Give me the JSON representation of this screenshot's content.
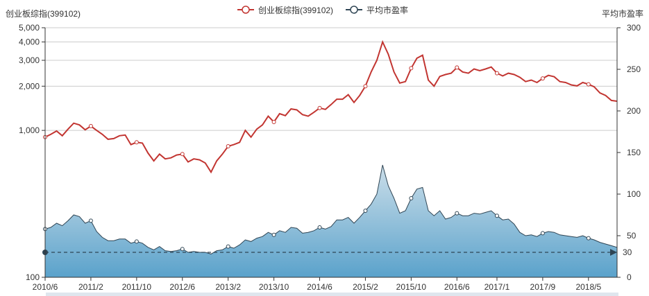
{
  "chart_data": {
    "type": "line",
    "left_axis": {
      "title": "创业板综指(399102)",
      "scale": "log",
      "ticks": [
        100,
        1000,
        2000,
        3000,
        4000,
        5000
      ],
      "tick_labels": [
        "100",
        "1,000",
        "2,000",
        "3,000",
        "4,000",
        "5,000"
      ],
      "range": [
        100,
        5000
      ]
    },
    "right_axis": {
      "title": "平均市盈率",
      "scale": "linear",
      "ticks": [
        0,
        50,
        100,
        150,
        200,
        250,
        300
      ],
      "tick_labels": [
        "0",
        "50",
        "100",
        "150",
        "200",
        "250",
        "300"
      ],
      "range": [
        0,
        300
      ]
    },
    "x_tick_labels": [
      "2010/6",
      "2011/2",
      "2011/10",
      "2012/6",
      "2013/2",
      "2013/10",
      "2014/6",
      "2015/2",
      "2015/10",
      "2016/6",
      "2017/1",
      "2017/9",
      "2018/5"
    ],
    "x_tick_index": [
      0,
      8,
      16,
      24,
      32,
      40,
      48,
      56,
      64,
      72,
      79,
      87,
      95
    ],
    "x": [
      "2010/6",
      "2010/7",
      "2010/8",
      "2010/9",
      "2010/10",
      "2010/11",
      "2010/12",
      "2011/1",
      "2011/2",
      "2011/3",
      "2011/4",
      "2011/5",
      "2011/6",
      "2011/7",
      "2011/8",
      "2011/9",
      "2011/10",
      "2011/11",
      "2011/12",
      "2012/1",
      "2012/2",
      "2012/3",
      "2012/4",
      "2012/5",
      "2012/6",
      "2012/7",
      "2012/8",
      "2012/9",
      "2012/10",
      "2012/11",
      "2012/12",
      "2013/1",
      "2013/2",
      "2013/3",
      "2013/4",
      "2013/5",
      "2013/6",
      "2013/7",
      "2013/8",
      "2013/9",
      "2013/10",
      "2013/11",
      "2013/12",
      "2014/1",
      "2014/2",
      "2014/3",
      "2014/4",
      "2014/5",
      "2014/6",
      "2014/7",
      "2014/8",
      "2014/9",
      "2014/10",
      "2014/11",
      "2014/12",
      "2015/1",
      "2015/2",
      "2015/3",
      "2015/4",
      "2015/5",
      "2015/6",
      "2015/7",
      "2015/8",
      "2015/9",
      "2015/10",
      "2015/11",
      "2015/12",
      "2016/1",
      "2016/2",
      "2016/3",
      "2016/4",
      "2016/5",
      "2016/6",
      "2016/7",
      "2016/8",
      "2016/9",
      "2016/10",
      "2016/11",
      "2016/12",
      "2017/1",
      "2017/2",
      "2017/3",
      "2017/4",
      "2017/5",
      "2017/6",
      "2017/7",
      "2017/8",
      "2017/9",
      "2017/10",
      "2017/11",
      "2017/12",
      "2018/1",
      "2018/2",
      "2018/3",
      "2018/4",
      "2018/5",
      "2018/6",
      "2018/7",
      "2018/8",
      "2018/9",
      "2018/10"
    ],
    "series": [
      {
        "name": "创业板综指(399102)",
        "axis": "left",
        "color": "#c23531",
        "values": [
          900,
          940,
          990,
          920,
          1020,
          1120,
          1090,
          1010,
          1070,
          1000,
          940,
          870,
          880,
          920,
          930,
          800,
          830,
          820,
          700,
          620,
          690,
          640,
          650,
          680,
          690,
          610,
          640,
          630,
          600,
          520,
          620,
          690,
          780,
          800,
          830,
          1000,
          900,
          1020,
          1090,
          1250,
          1140,
          1300,
          1260,
          1400,
          1380,
          1280,
          1250,
          1330,
          1420,
          1390,
          1500,
          1630,
          1630,
          1750,
          1550,
          1730,
          2000,
          2500,
          3000,
          4000,
          3300,
          2500,
          2100,
          2150,
          2650,
          3100,
          3250,
          2200,
          2000,
          2330,
          2400,
          2450,
          2680,
          2500,
          2450,
          2620,
          2550,
          2620,
          2700,
          2450,
          2350,
          2450,
          2400,
          2300,
          2150,
          2200,
          2120,
          2260,
          2370,
          2320,
          2150,
          2120,
          2040,
          2010,
          2120,
          2060,
          1980,
          1800,
          1730,
          1600,
          1580
        ],
        "markers": [
          0,
          8,
          16,
          24,
          32,
          40,
          48,
          56,
          64,
          72,
          79,
          87,
          95
        ]
      },
      {
        "name": "平均市盈率",
        "axis": "right",
        "color": "#2f4554",
        "values": [
          58,
          60,
          65,
          62,
          68,
          75,
          73,
          65,
          68,
          55,
          48,
          44,
          44,
          46,
          46,
          41,
          43,
          41,
          36,
          33,
          37,
          32,
          31,
          32,
          34,
          30,
          31,
          30,
          30,
          28,
          32,
          33,
          37,
          35,
          39,
          45,
          43,
          47,
          49,
          54,
          51,
          56,
          54,
          60,
          59,
          53,
          54,
          56,
          60,
          58,
          61,
          69,
          69,
          72,
          65,
          72,
          80,
          88,
          100,
          135,
          110,
          95,
          77,
          80,
          95,
          106,
          108,
          80,
          74,
          80,
          70,
          72,
          77,
          74,
          74,
          77,
          76,
          78,
          80,
          74,
          69,
          70,
          64,
          54,
          50,
          51,
          49,
          53,
          55,
          54,
          51,
          50,
          49,
          48,
          50,
          47,
          45,
          42,
          40,
          38,
          36
        ],
        "markers": [
          0,
          8,
          16,
          24,
          32,
          40,
          48,
          56,
          64,
          72,
          79,
          87,
          95
        ]
      }
    ],
    "mark_line": {
      "axis": "right",
      "value": 30,
      "label": "30",
      "color": "#2f4554"
    },
    "legend": {
      "position": "top-center",
      "items": [
        {
          "label": "创业板综指(399102)",
          "color": "#c23531"
        },
        {
          "label": "平均市盈率",
          "color": "#2f4554"
        }
      ]
    },
    "grid": true,
    "area_fill": {
      "series": 1,
      "top_color": "#c8dce8",
      "bottom_color": "#5aa2cb"
    }
  }
}
